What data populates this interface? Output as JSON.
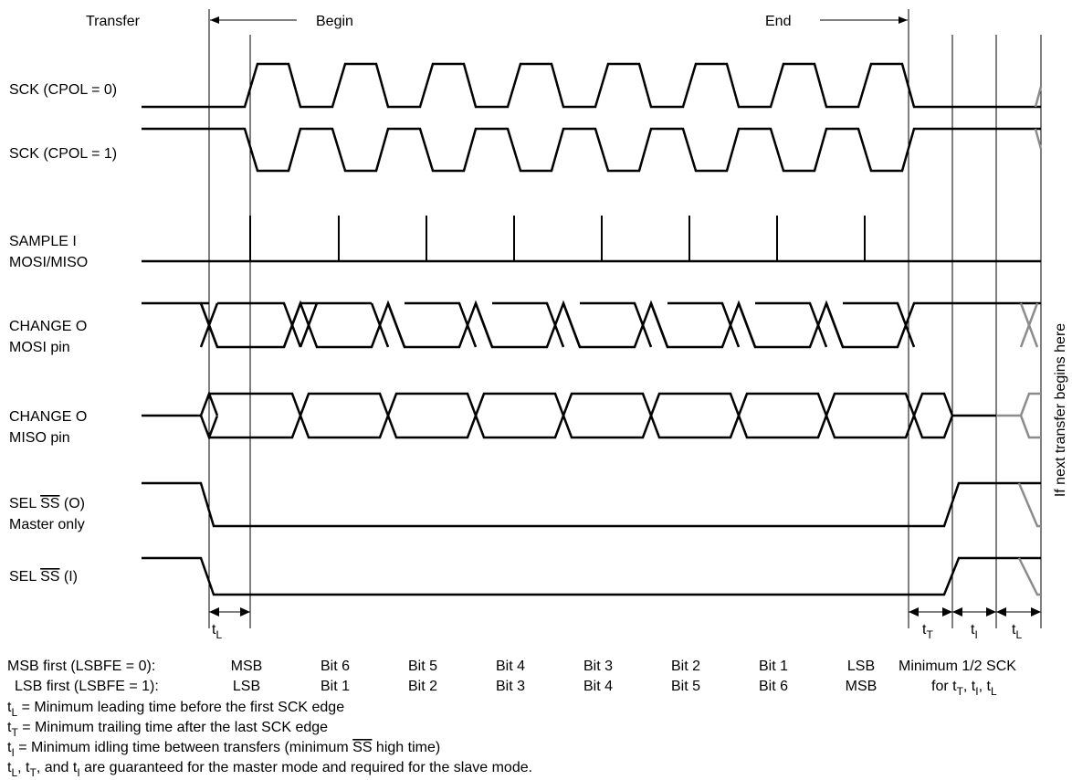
{
  "header": {
    "transfer": "Transfer",
    "begin": "Begin",
    "end": "End"
  },
  "signals": {
    "sck_cpol0": "SCK (CPOL = 0)",
    "sck_cpol1": "SCK (CPOL = 1)",
    "sample_1": "SAMPLE I",
    "sample_2": "MOSI/MISO",
    "change_mosi_1": "CHANGE O",
    "change_mosi_2": "MOSI pin",
    "change_miso_1": "CHANGE O",
    "change_miso_2": "MISO pin",
    "sel_o_1": "SEL",
    "sel_o_ss": "SS",
    "sel_o_suffix": "(O)",
    "sel_o_2": "Master only",
    "sel_i_1": "SEL",
    "sel_i_ss": "SS",
    "sel_i_suffix": "(I)"
  },
  "side_note": "If next transfer begins here",
  "timing_labels": {
    "t": "t",
    "L": "L",
    "T": "T",
    "I": "I"
  },
  "bit_order": {
    "msb_label": "MSB first (LSBFE = 0):",
    "lsb_label": "LSB first (LSBFE = 1):",
    "msb_first": [
      "MSB",
      "Bit 6",
      "Bit 5",
      "Bit 4",
      "Bit 3",
      "Bit 2",
      "Bit 1",
      "LSB"
    ],
    "lsb_first": [
      "LSB",
      "Bit 1",
      "Bit 2",
      "Bit 3",
      "Bit 4",
      "Bit 5",
      "Bit 6",
      "MSB"
    ],
    "minimum": "Minimum 1/2 SCK",
    "for_prefix": "for t",
    "for_sep1": ", t",
    "for_sep2": ", t"
  },
  "notes": {
    "n1": " = Minimum leading time before the first SCK edge",
    "n2": " = Minimum trailing time after the last SCK edge",
    "n3a": " = Minimum idling time between transfers (minimum ",
    "n3ss": "SS",
    "n3b": " high time)",
    "n4a": ", t",
    "n4b": ", and t",
    "n4c": " are guaranteed for the master mode and required for the slave mode."
  },
  "colors": {
    "waveform": "#000000",
    "next_transfer": "#8c8c8c"
  }
}
